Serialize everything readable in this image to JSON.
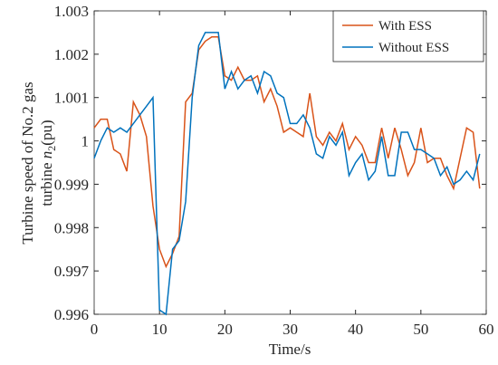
{
  "chart_data": {
    "type": "line",
    "xlabel": "Time/s",
    "ylabel": {
      "line1": "Turbine speed of No.2 gas",
      "line2": "turbine ",
      "symbol": "n",
      "subscript": "2",
      "unit": "(pu)"
    },
    "x": [
      0,
      1,
      2,
      3,
      4,
      5,
      6,
      7,
      8,
      9,
      10,
      11,
      12,
      13,
      14,
      15,
      16,
      17,
      18,
      19,
      20,
      21,
      22,
      23,
      24,
      25,
      26,
      27,
      28,
      29,
      30,
      31,
      32,
      33,
      34,
      35,
      36,
      37,
      38,
      39,
      40,
      41,
      42,
      43,
      44,
      45,
      46,
      47,
      48,
      49,
      50,
      51,
      52,
      53,
      54,
      55,
      56,
      57,
      58,
      59
    ],
    "series": [
      {
        "name": "With ESS",
        "color": "#d95319",
        "values": [
          1.0003,
          1.0005,
          1.0005,
          0.9998,
          0.9997,
          0.9993,
          1.0009,
          1.0006,
          1.0001,
          0.9985,
          0.9975,
          0.9971,
          0.9974,
          0.9978,
          1.0009,
          1.0011,
          1.0021,
          1.0023,
          1.0024,
          1.0024,
          1.0015,
          1.0014,
          1.0017,
          1.0014,
          1.0014,
          1.0015,
          1.0009,
          1.0012,
          1.0008,
          1.0002,
          1.0003,
          1.0002,
          1.0001,
          1.0011,
          1.0001,
          0.9999,
          1.0002,
          1.0,
          1.0004,
          0.9998,
          1.0001,
          0.9999,
          0.9995,
          0.9995,
          1.0003,
          0.9996,
          1.0003,
          0.9998,
          0.9992,
          0.9995,
          1.0003,
          0.9995,
          0.9996,
          0.9996,
          0.9992,
          0.9989,
          0.9996,
          1.0003,
          1.0002,
          0.9989
        ]
      },
      {
        "name": "Without ESS",
        "color": "#0072bd",
        "values": [
          0.9996,
          1.0,
          1.0003,
          1.0002,
          1.0003,
          1.0002,
          1.0004,
          1.0006,
          1.0008,
          1.001,
          0.9961,
          0.996,
          0.9975,
          0.9977,
          0.9986,
          1.001,
          1.0022,
          1.0025,
          1.0025,
          1.0025,
          1.0012,
          1.0016,
          1.0012,
          1.0014,
          1.0015,
          1.0011,
          1.0016,
          1.0015,
          1.0011,
          1.001,
          1.0004,
          1.0004,
          1.0006,
          1.0003,
          0.9997,
          0.9996,
          1.0001,
          0.9999,
          1.0002,
          0.9992,
          0.9995,
          0.9997,
          0.9991,
          0.9993,
          1.0001,
          0.9992,
          0.9992,
          1.0002,
          1.0002,
          0.9998,
          0.9998,
          0.9997,
          0.9996,
          0.9992,
          0.9994,
          0.999,
          0.9991,
          0.9993,
          0.9991,
          0.9997
        ]
      }
    ],
    "xlim": [
      0,
      60
    ],
    "xticks": [
      0,
      10,
      20,
      30,
      40,
      50,
      60
    ],
    "ylim": [
      0.996,
      1.003
    ],
    "yticks": [
      0.996,
      0.997,
      0.998,
      0.999,
      1,
      1.001,
      1.002,
      1.003
    ],
    "grid": false,
    "legend": "upper right"
  }
}
